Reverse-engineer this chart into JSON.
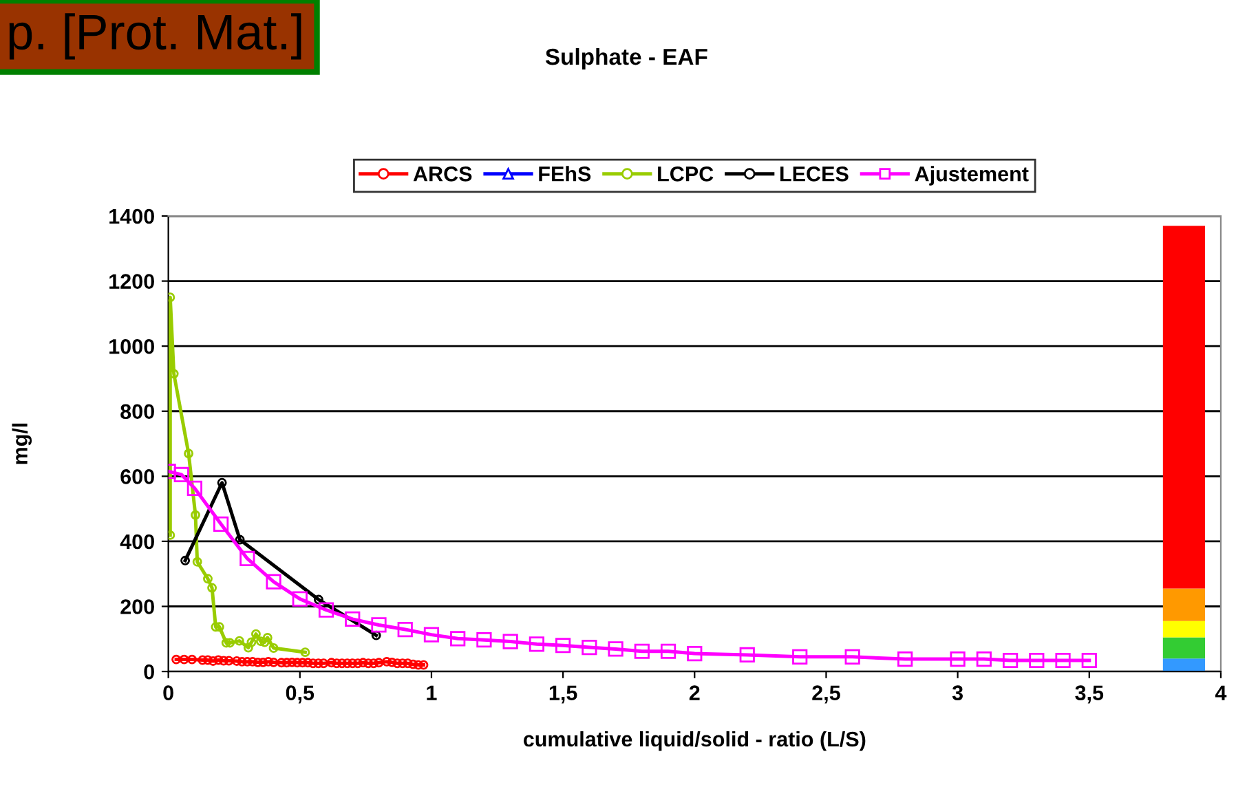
{
  "chart_data": {
    "type": "line",
    "title": "Sulphate - EAF",
    "xlabel": "cumulative liquid/solid - ratio (L/S)",
    "ylabel": "mg/l",
    "annotations": [
      "p. [Prot. Mat.]"
    ],
    "xlim": [
      0,
      4
    ],
    "xticks": [
      0,
      {
        "value": 0.5,
        "label": "0,5"
      },
      1,
      {
        "value": 1.5,
        "label": "1,5"
      },
      2,
      {
        "value": 2.5,
        "label": "2,5"
      },
      3,
      {
        "value": 3.5,
        "label": "3,5"
      },
      4
    ],
    "ylim": [
      0,
      1400
    ],
    "yticks": [
      0,
      200,
      400,
      600,
      800,
      1000,
      1200,
      1400
    ],
    "grid": "y",
    "legend": "top",
    "stacked": true,
    "series": [
      {
        "name": "ARCS",
        "color": "#ff0000",
        "marker": "circle",
        "x": [
          0.03,
          0.06,
          0.09,
          0.13,
          0.15,
          0.17,
          0.19,
          0.21,
          0.23,
          0.26,
          0.28,
          0.3,
          0.32,
          0.34,
          0.36,
          0.38,
          0.4,
          0.43,
          0.45,
          0.47,
          0.49,
          0.51,
          0.53,
          0.55,
          0.57,
          0.59,
          0.62,
          0.64,
          0.66,
          0.68,
          0.7,
          0.72,
          0.74,
          0.76,
          0.78,
          0.8,
          0.83,
          0.85,
          0.87,
          0.89,
          0.91,
          0.93,
          0.95,
          0.97
        ],
        "values": [
          37,
          37,
          37,
          35,
          35,
          32,
          35,
          33,
          33,
          32,
          30,
          30,
          30,
          28,
          28,
          30,
          28,
          27,
          27,
          28,
          27,
          27,
          27,
          25,
          25,
          25,
          27,
          25,
          25,
          25,
          25,
          25,
          27,
          25,
          25,
          27,
          30,
          28,
          25,
          25,
          25,
          22,
          20,
          20
        ]
      },
      {
        "name": "FEhS",
        "color": "#0000ff",
        "marker": "triangle"
      },
      {
        "name": "LCPC",
        "color": "#99cc00",
        "marker": "circle",
        "x": [
          0.007,
          0.007,
          0.021,
          0.077,
          0.103,
          0.11,
          0.15,
          0.166,
          0.18,
          0.194,
          0.22,
          0.234,
          0.27,
          0.304,
          0.316,
          0.333,
          0.351,
          0.366,
          0.377,
          0.4,
          0.52
        ],
        "values": [
          419,
          1150,
          915,
          670,
          481,
          337,
          285,
          257,
          137,
          137,
          88,
          88,
          94,
          73,
          90,
          115,
          93,
          90,
          104,
          72,
          59
        ]
      },
      {
        "name": "LECES",
        "color": "#000000",
        "marker": "circle",
        "x": [
          0.064,
          0.204,
          0.272,
          0.571,
          0.79
        ],
        "values": [
          341,
          580,
          405,
          221,
          111
        ]
      },
      {
        "name": "Ajustement",
        "color": "#ff00ff",
        "marker": "square",
        "x": [
          0,
          0.05,
          0.1,
          0.2,
          0.3,
          0.4,
          0.5,
          0.6,
          0.7,
          0.8,
          0.9,
          1.0,
          1.1,
          1.2,
          1.3,
          1.4,
          1.5,
          1.6,
          1.7,
          1.8,
          1.9,
          2.0,
          2.2,
          2.4,
          2.6,
          2.8,
          3.0,
          3.1,
          3.2,
          3.3,
          3.4,
          3.5
        ],
        "values": [
          615,
          605,
          563,
          453,
          347,
          276,
          223,
          189,
          161,
          143,
          129,
          113,
          101,
          97,
          92,
          84,
          80,
          74,
          69,
          62,
          62,
          55,
          51,
          45,
          45,
          38,
          38,
          38,
          34,
          34,
          34,
          34
        ]
      },
      {
        "type": "bar",
        "color": "#3399ff",
        "x": [
          3.86
        ],
        "values": [
          40
        ]
      },
      {
        "type": "bar",
        "color": "#33cc33",
        "x": [
          3.86
        ],
        "values": [
          65
        ]
      },
      {
        "type": "bar",
        "color": "#ffff00",
        "x": [
          3.86
        ],
        "values": [
          50
        ]
      },
      {
        "type": "bar",
        "color": "#ff9900",
        "x": [
          3.86
        ],
        "values": [
          100
        ]
      },
      {
        "type": "bar",
        "color": "#ff0000",
        "x": [
          3.86
        ],
        "values": [
          1115
        ]
      }
    ]
  }
}
